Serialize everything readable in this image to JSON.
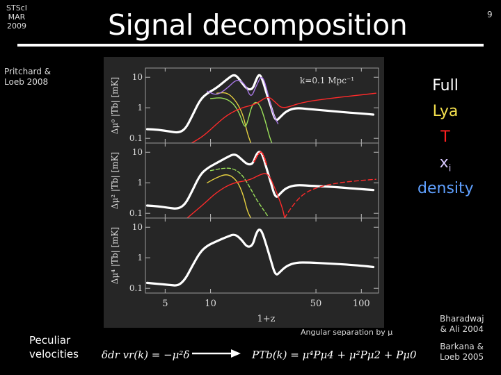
{
  "slide": {
    "meta": [
      "STScI",
      "MAR",
      "2009"
    ],
    "page_number": "9",
    "title": "Signal decomposition",
    "citation": [
      "Pritchard &",
      "Loeb 2008"
    ],
    "legend": [
      {
        "label": "Full",
        "color": "#ffffff"
      },
      {
        "label": "Lya",
        "color": "#f4e04d"
      },
      {
        "label": "T",
        "color": "#ff2020"
      },
      {
        "label": "x",
        "sub": "i",
        "color": "#d8c8ff"
      },
      {
        "label": "density",
        "color": "#5fa0ff"
      }
    ],
    "peculiar": [
      "Peculiar",
      "velocities"
    ],
    "angular_note": "Angular separation by μ",
    "ref1": [
      "Bharadwaj",
      "& Ali 2004"
    ],
    "ref2": [
      "Barkana &",
      "Loeb 2005"
    ],
    "formula_left": "δdr vr(k) = −μ²δ",
    "formula_right": "PTb(k) = μ⁴Pμ4 + μ²Pμ2 + Pμ0"
  },
  "chart_data": {
    "type": "line",
    "xlabel": "1+z",
    "x_scale": "log",
    "xlim": [
      3.7,
      130
    ],
    "x_ticks": [
      "5",
      "10",
      "50",
      "100"
    ],
    "y_scale": "log",
    "ylim": [
      0.07,
      20
    ],
    "y_ticks": [
      "10",
      "1",
      "0.1"
    ],
    "ylabels": [
      "Δμ⁰ |Tb| [mK]",
      "Δμ² |Tb| [mK]",
      "Δμ⁴ |Tb| [mK]"
    ],
    "annotation": "k=0.1  Mpc⁻¹",
    "panels": [
      {
        "series": [
          {
            "color": "#ffffff",
            "width": 3.2,
            "points": [
              [
                3.8,
                0.2
              ],
              [
                4.5,
                0.19
              ],
              [
                5.3,
                0.17
              ],
              [
                6.1,
                0.15
              ],
              [
                6.8,
                0.2
              ],
              [
                7.5,
                0.5
              ],
              [
                8.5,
                1.8
              ],
              [
                9.5,
                3.0
              ],
              [
                11,
                4.5
              ],
              [
                13,
                9
              ],
              [
                14.5,
                13
              ],
              [
                16,
                7
              ],
              [
                17.5,
                4
              ],
              [
                19,
                4
              ],
              [
                20,
                8
              ],
              [
                21,
                13
              ],
              [
                22,
                9
              ],
              [
                23.5,
                3
              ],
              [
                25,
                1.2
              ],
              [
                27,
                0.35
              ],
              [
                29,
                0.5
              ],
              [
                32,
                0.8
              ],
              [
                37,
                1.0
              ],
              [
                45,
                0.9
              ],
              [
                60,
                0.8
              ],
              [
                80,
                0.7
              ],
              [
                100,
                0.65
              ],
              [
                120,
                0.6
              ]
            ]
          },
          {
            "color": "#e6d040",
            "width": 1.4,
            "points": [
              [
                11,
                3
              ],
              [
                13,
                3.2
              ],
              [
                15,
                1.5
              ],
              [
                16.5,
                0.55
              ],
              [
                17.5,
                0.15
              ],
              [
                18.5,
                0.07
              ]
            ]
          },
          {
            "color": "#a878e6",
            "width": 1.4,
            "points": [
              [
                9.5,
                3.5
              ],
              [
                11,
                2.5
              ],
              [
                13,
                4.5
              ],
              [
                15,
                9
              ],
              [
                17,
                6
              ],
              [
                18.5,
                2
              ],
              [
                20,
                5
              ],
              [
                22,
                13
              ],
              [
                24,
                3
              ],
              [
                26,
                0.6
              ],
              [
                28,
                0.3
              ]
            ]
          },
          {
            "color": "#9be05a",
            "width": 1.4,
            "points": [
              [
                10,
                2
              ],
              [
                12,
                2.2
              ],
              [
                14,
                1.5
              ],
              [
                15.5,
                0.7
              ],
              [
                16.8,
                0.22
              ],
              [
                17.5,
                0.3
              ],
              [
                19,
                1.5
              ],
              [
                21,
                1.5
              ],
              [
                23,
                0.4
              ],
              [
                24.5,
                0.12
              ],
              [
                25.5,
                0.07
              ]
            ]
          },
          {
            "color": "#ff2a2a",
            "width": 1.4,
            "points": [
              [
                7.5,
                0.07
              ],
              [
                9,
                0.12
              ],
              [
                11,
                0.3
              ],
              [
                13,
                0.6
              ],
              [
                16,
                1.0
              ],
              [
                20,
                1.3
              ],
              [
                24,
                2.5
              ],
              [
                27,
                1.5
              ],
              [
                30,
                0.9
              ],
              [
                40,
                1.5
              ],
              [
                60,
                2.0
              ],
              [
                90,
                2.5
              ],
              [
                125,
                3.0
              ]
            ]
          }
        ]
      },
      {
        "series": [
          {
            "color": "#ffffff",
            "width": 3.2,
            "points": [
              [
                3.8,
                0.18
              ],
              [
                4.5,
                0.17
              ],
              [
                5.3,
                0.15
              ],
              [
                6.1,
                0.14
              ],
              [
                6.8,
                0.2
              ],
              [
                7.5,
                0.5
              ],
              [
                8.5,
                1.8
              ],
              [
                9.5,
                3.0
              ],
              [
                11,
                4.5
              ],
              [
                13,
                7
              ],
              [
                14.5,
                9
              ],
              [
                16,
                6
              ],
              [
                17.5,
                4
              ],
              [
                19,
                4
              ],
              [
                20,
                8
              ],
              [
                21,
                11
              ],
              [
                22,
                9
              ],
              [
                23.5,
                3
              ],
              [
                25,
                1.1
              ],
              [
                27,
                0.3
              ],
              [
                29,
                0.45
              ],
              [
                32,
                0.7
              ],
              [
                37,
                0.85
              ],
              [
                45,
                0.8
              ],
              [
                60,
                0.75
              ],
              [
                80,
                0.68
              ],
              [
                100,
                0.62
              ],
              [
                120,
                0.58
              ]
            ]
          },
          {
            "color": "#e6d040",
            "width": 1.4,
            "points": [
              [
                9.5,
                1.0
              ],
              [
                11,
                1.5
              ],
              [
                13,
                2.0
              ],
              [
                15,
                1.2
              ],
              [
                16.5,
                0.4
              ],
              [
                17.5,
                0.12
              ],
              [
                18.5,
                0.07
              ]
            ]
          },
          {
            "color": "#9be05a",
            "width": 1.4,
            "dash": "5,3",
            "points": [
              [
                10,
                2.5
              ],
              [
                12,
                3
              ],
              [
                14,
                3
              ],
              [
                16,
                2
              ],
              [
                18,
                0.8
              ],
              [
                20,
                0.3
              ],
              [
                22,
                0.15
              ],
              [
                24,
                0.08
              ]
            ]
          },
          {
            "color": "#ff2a2a",
            "width": 1.4,
            "points": [
              [
                7,
                0.07
              ],
              [
                9,
                0.2
              ],
              [
                11,
                0.5
              ],
              [
                14,
                1.0
              ],
              [
                18,
                1.2
              ],
              [
                21,
                1.8
              ],
              [
                24,
                2.2
              ],
              [
                27,
                0.6
              ],
              [
                30,
                0.15
              ],
              [
                31,
                0.07
              ]
            ]
          },
          {
            "color": "#ff2a2a",
            "width": 1.4,
            "dash": "6,4",
            "points": [
              [
                31,
                0.07
              ],
              [
                33,
                0.12
              ],
              [
                40,
                0.4
              ],
              [
                50,
                0.7
              ],
              [
                70,
                1.0
              ],
              [
                100,
                1.2
              ],
              [
                125,
                1.3
              ]
            ]
          },
          {
            "color": "#ff2a2a",
            "width": 2.2,
            "dash": "1.5,2.5",
            "points": [
              [
                19.5,
                5
              ],
              [
                20.5,
                8
              ],
              [
                21.5,
                11
              ],
              [
                22.5,
                8
              ],
              [
                23.5,
                4
              ]
            ]
          }
        ]
      },
      {
        "series": [
          {
            "color": "#ffffff",
            "width": 3.2,
            "points": [
              [
                3.8,
                0.15
              ],
              [
                4.5,
                0.14
              ],
              [
                5.3,
                0.13
              ],
              [
                6.1,
                0.12
              ],
              [
                6.8,
                0.2
              ],
              [
                7.5,
                0.5
              ],
              [
                8.5,
                1.5
              ],
              [
                9.5,
                2.5
              ],
              [
                11,
                3.5
              ],
              [
                13,
                5
              ],
              [
                14.5,
                6
              ],
              [
                16,
                4
              ],
              [
                17.5,
                2.2
              ],
              [
                19,
                2.5
              ],
              [
                20,
                6
              ],
              [
                21,
                9
              ],
              [
                22,
                7
              ],
              [
                23.5,
                2.5
              ],
              [
                25,
                0.9
              ],
              [
                27,
                0.25
              ],
              [
                29,
                0.35
              ],
              [
                32,
                0.55
              ],
              [
                37,
                0.7
              ],
              [
                45,
                0.7
              ],
              [
                60,
                0.65
              ],
              [
                80,
                0.6
              ],
              [
                100,
                0.55
              ],
              [
                120,
                0.5
              ]
            ]
          }
        ]
      }
    ]
  }
}
